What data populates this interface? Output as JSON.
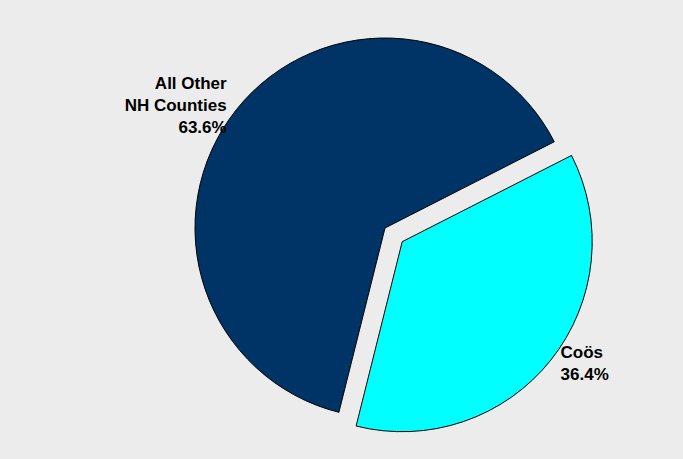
{
  "chart_data": {
    "type": "pie",
    "categories": [
      "All Other NH Counties",
      "Coös"
    ],
    "values": [
      63.6,
      36.4
    ],
    "value_labels": [
      "63.6%",
      "36.4%"
    ],
    "colors": [
      "#003366",
      "#00ffff"
    ],
    "data_labels": true
  }
}
